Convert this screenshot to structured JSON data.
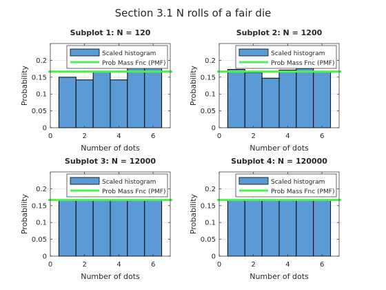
{
  "figure_title": "Section 3.1 N rolls of a fair die",
  "colors": {
    "bar_fill": "#5b9bd5",
    "bar_edge": "#000000",
    "pmf_line": "#4cf04c",
    "axes": "#262626",
    "grid": "#e6e6e6"
  },
  "chart_data": [
    {
      "type": "bar",
      "title": "Subplot 1: N = 120",
      "xlabel": "Number of dots",
      "ylabel": "Probability",
      "x": [
        1,
        2,
        3,
        4,
        5,
        6
      ],
      "xlim": [
        0,
        7
      ],
      "ylim": [
        0,
        0.25
      ],
      "xticks": [
        "0",
        "2",
        "4",
        "6"
      ],
      "yticks": [
        "0",
        "0.05",
        "0.1",
        "0.15",
        "0.2"
      ],
      "grid": true,
      "legend_position": "top-right",
      "series": [
        {
          "name": "Scaled histogram",
          "values": [
            0.15,
            0.142,
            0.167,
            0.142,
            0.2,
            0.2
          ]
        },
        {
          "name": "Prob Mass Fnc (PMF)",
          "values": [
            0.1667,
            0.1667,
            0.1667,
            0.1667,
            0.1667,
            0.1667
          ]
        }
      ]
    },
    {
      "type": "bar",
      "title": "Subplot 2: N = 1200",
      "xlabel": "Number of dots",
      "ylabel": "Probability",
      "x": [
        1,
        2,
        3,
        4,
        5,
        6
      ],
      "xlim": [
        0,
        7
      ],
      "ylim": [
        0,
        0.25
      ],
      "xticks": [
        "0",
        "2",
        "4",
        "6"
      ],
      "yticks": [
        "0",
        "0.05",
        "0.1",
        "0.15",
        "0.2"
      ],
      "grid": true,
      "legend_position": "top-right",
      "series": [
        {
          "name": "Scaled histogram",
          "values": [
            0.173,
            0.164,
            0.147,
            0.171,
            0.176,
            0.168
          ]
        },
        {
          "name": "Prob Mass Fnc (PMF)",
          "values": [
            0.1667,
            0.1667,
            0.1667,
            0.1667,
            0.1667,
            0.1667
          ]
        }
      ]
    },
    {
      "type": "bar",
      "title": "Subplot 3: N = 12000",
      "xlabel": "Number of dots",
      "ylabel": "Probability",
      "x": [
        1,
        2,
        3,
        4,
        5,
        6
      ],
      "xlim": [
        0,
        7
      ],
      "ylim": [
        0,
        0.25
      ],
      "xticks": [
        "0",
        "2",
        "4",
        "6"
      ],
      "yticks": [
        "0",
        "0.05",
        "0.1",
        "0.15",
        "0.2"
      ],
      "grid": true,
      "legend_position": "top-right",
      "series": [
        {
          "name": "Scaled histogram",
          "values": [
            0.167,
            0.166,
            0.168,
            0.167,
            0.165,
            0.167
          ]
        },
        {
          "name": "Prob Mass Fnc (PMF)",
          "values": [
            0.1667,
            0.1667,
            0.1667,
            0.1667,
            0.1667,
            0.1667
          ]
        }
      ]
    },
    {
      "type": "bar",
      "title": "Subplot 4: N = 120000",
      "xlabel": "Number of dots",
      "ylabel": "Probability",
      "x": [
        1,
        2,
        3,
        4,
        5,
        6
      ],
      "xlim": [
        0,
        7
      ],
      "ylim": [
        0,
        0.25
      ],
      "xticks": [
        "0",
        "2",
        "4",
        "6"
      ],
      "yticks": [
        "0",
        "0.05",
        "0.1",
        "0.15",
        "0.2"
      ],
      "grid": true,
      "legend_position": "top-right",
      "series": [
        {
          "name": "Scaled histogram",
          "values": [
            0.167,
            0.166,
            0.165,
            0.167,
            0.167,
            0.166
          ]
        },
        {
          "name": "Prob Mass Fnc (PMF)",
          "values": [
            0.1667,
            0.1667,
            0.1667,
            0.1667,
            0.1667,
            0.1667
          ]
        }
      ]
    }
  ]
}
